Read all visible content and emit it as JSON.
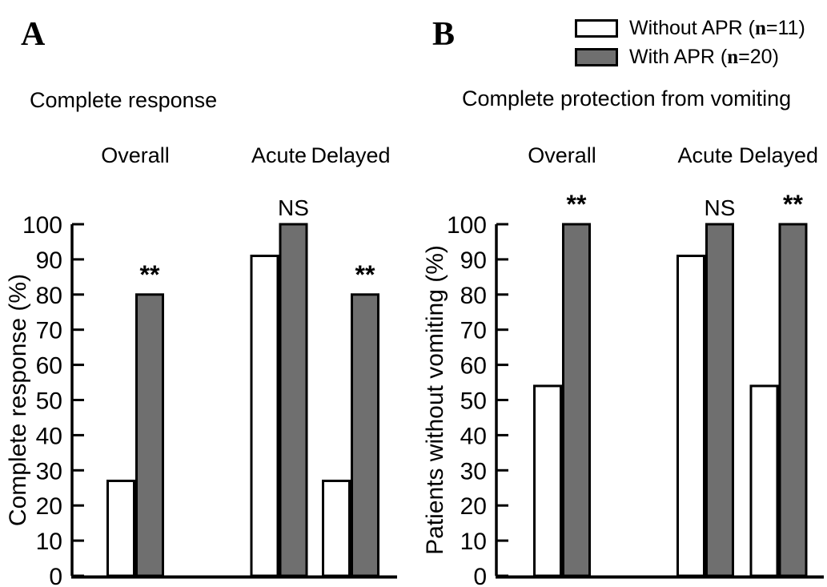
{
  "figure": {
    "background": "#ffffff"
  },
  "colors": {
    "without_apr_fill": "#ffffff",
    "with_apr_fill": "#6f6f6f",
    "stroke": "#000000",
    "text": "#000000"
  },
  "legend": {
    "items": [
      {
        "pre": "Without APR (",
        "n": "n",
        "post": "=11)",
        "swatch": "white"
      },
      {
        "pre": "With APR (",
        "n": "n",
        "post": "=20)",
        "swatch": "gray"
      }
    ]
  },
  "chart_data": [
    {
      "type": "bar",
      "panel_label": "A",
      "title": "Complete response",
      "ylabel": "Complete response (%)",
      "xlabel": "",
      "ylim": [
        0,
        100
      ],
      "ytick_step": 10,
      "grid": false,
      "legend_position": "figure-top-right",
      "categories": [
        "Overall",
        "Acute",
        "Delayed"
      ],
      "series": [
        {
          "name": "Without APR (n=11)",
          "values": [
            27,
            91,
            27
          ]
        },
        {
          "name": "With APR (n=20)",
          "values": [
            80,
            100,
            80
          ]
        }
      ],
      "annotations": [
        "**",
        "NS",
        "**"
      ]
    },
    {
      "type": "bar",
      "panel_label": "B",
      "title": "Complete protection from vomiting",
      "ylabel": "Patients without vomiting (%)",
      "xlabel": "",
      "ylim": [
        0,
        100
      ],
      "ytick_step": 10,
      "grid": false,
      "legend_position": "figure-top-right",
      "categories": [
        "Overall",
        "Acute",
        "Delayed"
      ],
      "series": [
        {
          "name": "Without APR (n=11)",
          "values": [
            54,
            91,
            54
          ]
        },
        {
          "name": "With APR (n=20)",
          "values": [
            100,
            100,
            100
          ]
        }
      ],
      "annotations": [
        "**",
        "NS",
        "**"
      ]
    }
  ]
}
